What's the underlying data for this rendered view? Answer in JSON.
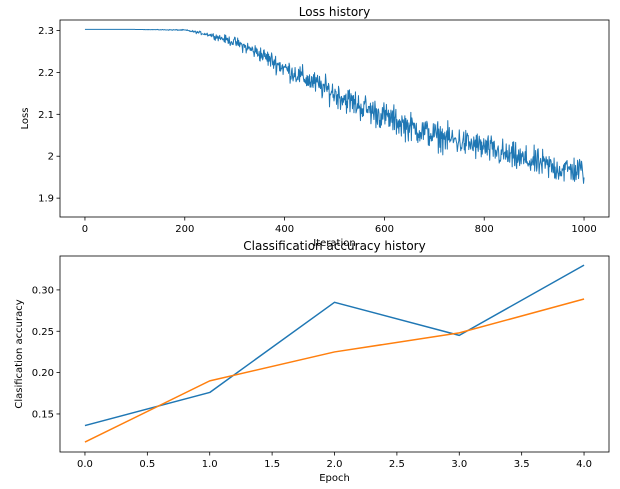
{
  "chart_data": [
    {
      "type": "line",
      "title": "Loss history",
      "xlabel": "Iteration",
      "ylabel": "Loss",
      "xlim": [
        -50,
        1050
      ],
      "ylim": [
        1.855,
        2.325
      ],
      "xticks": [
        0,
        200,
        400,
        600,
        800,
        1000
      ],
      "yticks": [
        1.9,
        2.0,
        2.1,
        2.2,
        2.3
      ],
      "grid": false,
      "series": [
        {
          "color": "#1f77b4",
          "noisy": true,
          "x": [
            0,
            100,
            200,
            250,
            300,
            350,
            400,
            450,
            500,
            550,
            600,
            650,
            700,
            750,
            800,
            850,
            900,
            950,
            1000
          ],
          "values": [
            2.3026,
            2.3025,
            2.301,
            2.29,
            2.272,
            2.245,
            2.21,
            2.18,
            2.15,
            2.12,
            2.095,
            2.07,
            2.05,
            2.035,
            2.02,
            2.0,
            1.985,
            1.97,
            1.965
          ],
          "noise_amplitude": [
            0,
            0,
            0.002,
            0.008,
            0.018,
            0.028,
            0.035,
            0.04,
            0.045,
            0.05,
            0.05,
            0.05,
            0.05,
            0.05,
            0.05,
            0.05,
            0.05,
            0.05,
            0.05
          ]
        }
      ]
    },
    {
      "type": "line",
      "title": "Classification accuracy history",
      "xlabel": "Epoch",
      "ylabel": "Clasification accuracy",
      "xlim": [
        -0.2,
        4.2
      ],
      "ylim": [
        0.104,
        0.341
      ],
      "xticks": [
        0.0,
        0.5,
        1.0,
        1.5,
        2.0,
        2.5,
        3.0,
        3.5,
        4.0
      ],
      "xtick_labels": [
        "0.0",
        "0.5",
        "1.0",
        "1.5",
        "2.0",
        "2.5",
        "3.0",
        "3.5",
        "4.0"
      ],
      "yticks": [
        0.15,
        0.2,
        0.25,
        0.3
      ],
      "ytick_labels": [
        "0.15",
        "0.20",
        "0.25",
        "0.30"
      ],
      "grid": false,
      "series": [
        {
          "color": "#1f77b4",
          "x": [
            0,
            1,
            2,
            3,
            4
          ],
          "values": [
            0.136,
            0.176,
            0.285,
            0.245,
            0.33
          ]
        },
        {
          "color": "#ff7f0e",
          "x": [
            0,
            1,
            2,
            3,
            4
          ],
          "values": [
            0.116,
            0.19,
            0.225,
            0.248,
            0.289
          ]
        }
      ]
    }
  ]
}
